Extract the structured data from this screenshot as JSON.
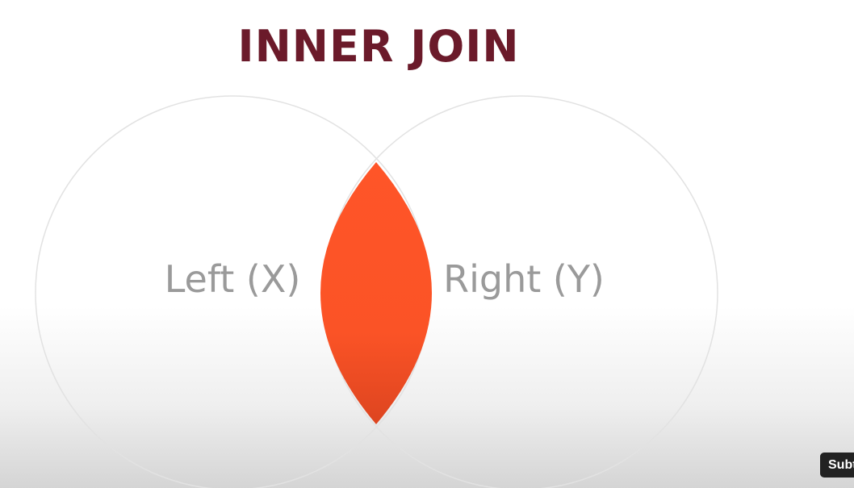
{
  "title": "INNER JOIN",
  "labels": {
    "left": "Left (X)",
    "right": "Right (Y)"
  },
  "colors": {
    "title": "#6b1a2a",
    "intersection": "#ff5528",
    "circle_outline": "#e2e2e2",
    "label": "#9a9a9a"
  },
  "player": {
    "subtitles_button": "Subt"
  }
}
